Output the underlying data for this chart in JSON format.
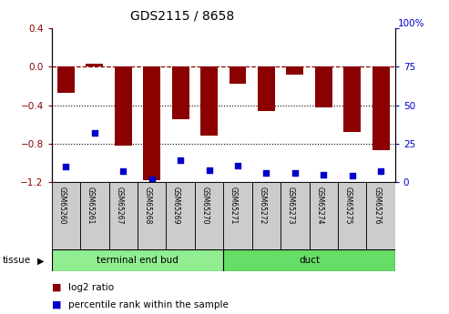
{
  "title": "GDS2115 / 8658",
  "samples": [
    "GSM65260",
    "GSM65261",
    "GSM65267",
    "GSM65268",
    "GSM65269",
    "GSM65270",
    "GSM65271",
    "GSM65272",
    "GSM65273",
    "GSM65274",
    "GSM65275",
    "GSM65276"
  ],
  "log2_ratio_vals": [
    -0.27,
    0.03,
    -0.82,
    -1.18,
    -0.55,
    -0.72,
    -0.18,
    -0.46,
    -0.08,
    -0.42,
    -0.68,
    -0.87
  ],
  "percentile_rank": [
    10,
    32,
    7,
    2,
    14,
    8,
    11,
    6,
    6,
    5,
    4,
    7
  ],
  "groups": [
    {
      "label": "terminal end bud",
      "start": 0,
      "end": 6,
      "color": "#90EE90"
    },
    {
      "label": "duct",
      "start": 6,
      "end": 12,
      "color": "#66DD66"
    }
  ],
  "bar_color": "#8B0000",
  "dot_color": "#0000CD",
  "ylim_left": [
    -1.2,
    0.4
  ],
  "ylim_right": [
    0,
    100
  ],
  "yticks_left": [
    -1.2,
    -0.8,
    -0.4,
    0.0,
    0.4
  ],
  "yticks_right": [
    0,
    25,
    50,
    75,
    100
  ],
  "dotted_lines": [
    -0.4,
    -0.8
  ],
  "tissue_label": "tissue",
  "legend": [
    {
      "color": "#8B0000",
      "label": "log2 ratio"
    },
    {
      "color": "#0000CD",
      "label": "percentile rank within the sample"
    }
  ]
}
